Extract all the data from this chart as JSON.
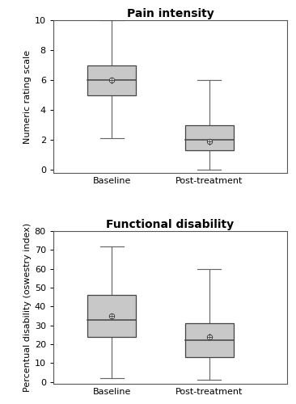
{
  "fig1": {
    "title": "Pain intensity",
    "ylabel": "Numeric rating scale",
    "ylim": [
      -0.2,
      10
    ],
    "yticks": [
      0,
      2,
      4,
      6,
      8,
      10
    ],
    "categories": [
      "Baseline",
      "Post-treatment"
    ],
    "boxes": [
      {
        "whislo": 2.1,
        "q1": 5.0,
        "med": 6.0,
        "q3": 7.0,
        "whishi": 10.0,
        "mean": 6.0
      },
      {
        "whislo": 0.0,
        "q1": 1.3,
        "med": 2.0,
        "q3": 3.0,
        "whishi": 6.0,
        "mean": 1.9
      }
    ]
  },
  "fig2": {
    "title": "Functional disability",
    "ylabel": "Percentual disability (oswestry index)",
    "ylim": [
      -1,
      80
    ],
    "yticks": [
      0,
      10,
      20,
      30,
      40,
      50,
      60,
      70,
      80
    ],
    "categories": [
      "Baseline",
      "Post-treatment"
    ],
    "boxes": [
      {
        "whislo": 2.0,
        "q1": 24.0,
        "med": 33.0,
        "q3": 46.0,
        "whishi": 72.0,
        "mean": 35.0
      },
      {
        "whislo": 1.0,
        "q1": 13.0,
        "med": 22.0,
        "q3": 31.0,
        "whishi": 60.0,
        "mean": 24.0
      }
    ]
  },
  "box_color": "#c8c8c8",
  "box_edgecolor": "#444444",
  "median_color": "#444444",
  "whisker_color": "#666666",
  "mean_marker_facecolor": "#ffffff",
  "mean_marker_edgecolor": "#444444",
  "mean_marker_size": 4.5,
  "background_color": "#ffffff",
  "title_fontsize": 10,
  "label_fontsize": 8,
  "tick_fontsize": 8,
  "box_width": 0.5,
  "positions": [
    1,
    2
  ],
  "xlim": [
    0.4,
    2.8
  ]
}
